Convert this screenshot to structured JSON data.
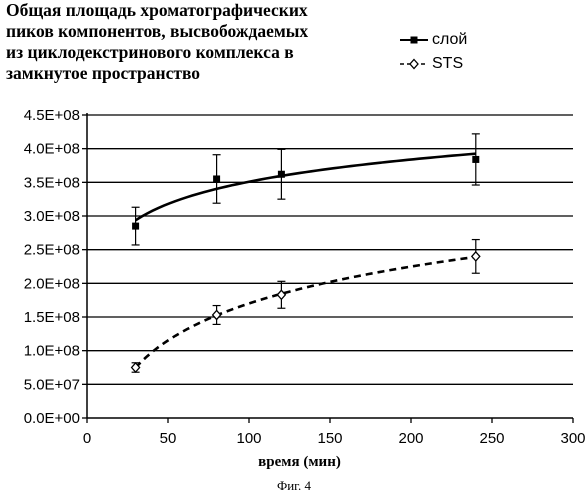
{
  "title_lines": [
    "Общая площадь хроматографических",
    "пиков компонентов, высвобождаемых",
    "из циклодекстринового комплекса  в",
    "замкнутое пространство"
  ],
  "caption": "Фиг. 4",
  "chart_data": {
    "type": "scatter",
    "title": "Общая площадь хроматографических пиков компонентов, высвобождаемых из циклодекстринового комплекса  в замкнутое пространство",
    "xlabel": "время (мин)",
    "ylabel": "",
    "xlim": [
      0,
      300
    ],
    "ylim": [
      0,
      450000000
    ],
    "x_ticks": [
      0,
      50,
      100,
      150,
      200,
      250,
      300
    ],
    "x_tick_labels": [
      "0",
      "50",
      "100",
      "150",
      "200",
      "250",
      "300"
    ],
    "y_ticks": [
      0,
      50000000,
      100000000,
      150000000,
      200000000,
      250000000,
      300000000,
      350000000,
      400000000,
      450000000
    ],
    "y_tick_labels": [
      "0.0E+00",
      "5.0E+07",
      "1.0E+08",
      "1.5E+08",
      "2.0E+08",
      "2.5E+08",
      "3.0E+08",
      "3.5E+08",
      "4.0E+08",
      "4.5E+08"
    ],
    "grid": "horizontal",
    "legend_position": "top-right",
    "series": [
      {
        "name": "слой",
        "marker": "filled-square",
        "line_style": "solid",
        "trendline": "logarithmic",
        "color": "#000000",
        "x": [
          30,
          80,
          120,
          240
        ],
        "y": [
          285000000,
          355000000,
          362000000,
          384000000
        ],
        "error": [
          28000000,
          36000000,
          37000000,
          38000000
        ]
      },
      {
        "name": "STS",
        "marker": "open-diamond",
        "line_style": "dashed",
        "trendline": "logarithmic",
        "color": "#000000",
        "x": [
          30,
          80,
          120,
          240
        ],
        "y": [
          75000000,
          153000000,
          183000000,
          240000000
        ],
        "error": [
          7000000,
          14000000,
          20000000,
          25000000
        ]
      }
    ]
  }
}
